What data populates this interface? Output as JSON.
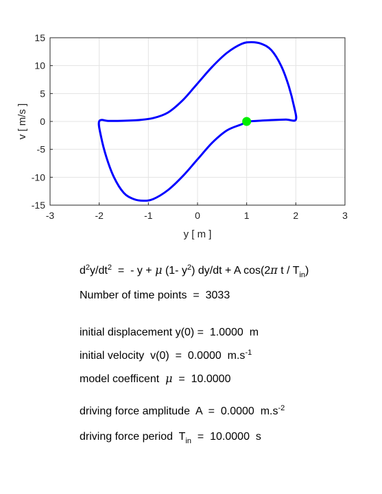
{
  "chart_data": {
    "type": "line",
    "xlabel": "y  [ m ]",
    "ylabel": "v  [ m/s ]",
    "xlim": [
      -3,
      3
    ],
    "ylim": [
      -15,
      15
    ],
    "xticks": [
      "-3",
      "-2",
      "-1",
      "0",
      "1",
      "2",
      "3"
    ],
    "yticks": [
      "15",
      "10",
      "5",
      "0",
      "-5",
      "-10",
      "-15"
    ],
    "grid": true,
    "line_color": "#0000ff",
    "marker_color": "#00ee00",
    "marker_point": {
      "y": 1.0,
      "v": 0.0
    },
    "series": [
      {
        "points": [
          [
            1.0,
            0.0
          ],
          [
            1.2,
            0.1
          ],
          [
            1.5,
            0.25
          ],
          [
            1.8,
            0.35
          ],
          [
            2.0,
            0.3
          ],
          [
            1.96,
            2.8
          ],
          [
            1.85,
            6.5
          ],
          [
            1.7,
            10.0
          ],
          [
            1.5,
            12.8
          ],
          [
            1.3,
            13.9
          ],
          [
            1.1,
            14.2
          ],
          [
            0.9,
            13.9
          ],
          [
            0.6,
            12.3
          ],
          [
            0.3,
            9.8
          ],
          [
            0.0,
            6.8
          ],
          [
            -0.3,
            3.8
          ],
          [
            -0.6,
            1.6
          ],
          [
            -0.9,
            0.6
          ],
          [
            -1.2,
            0.25
          ],
          [
            -1.5,
            0.12
          ],
          [
            -1.8,
            0.08
          ],
          [
            -2.0,
            0.05
          ],
          [
            -1.96,
            -2.8
          ],
          [
            -1.85,
            -6.5
          ],
          [
            -1.7,
            -10.0
          ],
          [
            -1.5,
            -12.8
          ],
          [
            -1.3,
            -13.9
          ],
          [
            -1.1,
            -14.2
          ],
          [
            -0.9,
            -13.9
          ],
          [
            -0.6,
            -12.3
          ],
          [
            -0.3,
            -9.8
          ],
          [
            0.0,
            -6.8
          ],
          [
            0.3,
            -3.8
          ],
          [
            0.6,
            -1.6
          ],
          [
            0.9,
            -0.5
          ],
          [
            1.0,
            0.0
          ]
        ]
      }
    ]
  },
  "info": {
    "equation": {
      "lhs": "d",
      "lhs_sup1": "2",
      "lhs_mid": "y/dt",
      "lhs_sup2": "2",
      "part1": "  =  - y + ",
      "mu": "μ",
      "part2": " (1- y",
      "sup3": "2",
      "part3": ") dy/dt + A cos(2",
      "pi": "π",
      "part4": " t / T",
      "sub": "in",
      "part5": ")"
    },
    "time_points": "Number of time points  =  3033",
    "initial_displacement": "initial displacement y(0) =  1.0000  m",
    "initial_velocity": "initial velocity  v(0)  =  0.0000  m.s",
    "initial_velocity_sup": "-1",
    "model_coeff_label": "model coefficent  ",
    "model_coeff_mu": "μ",
    "model_coeff_value": "  =  10.0000",
    "amplitude": "driving force amplitude  A  =  0.0000  m.s",
    "amplitude_sup": "-2",
    "period_label": "driving force period  T",
    "period_sub": "in",
    "period_value": "  =  10.0000  s"
  }
}
